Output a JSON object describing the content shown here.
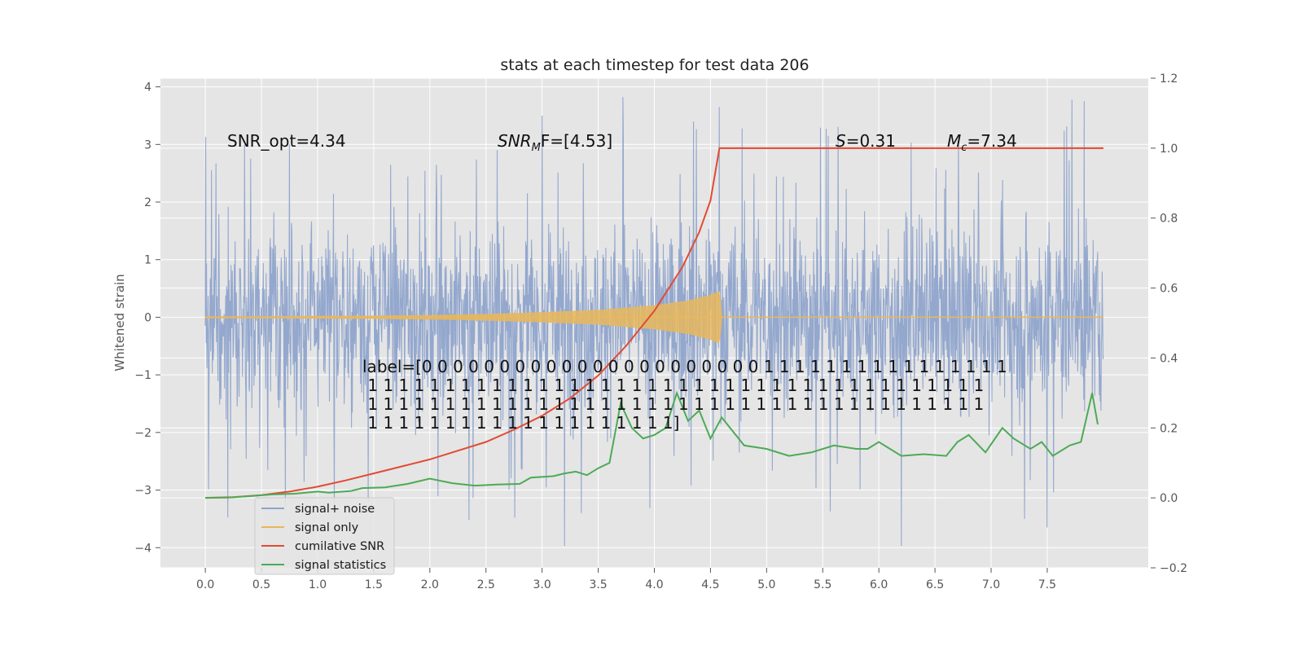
{
  "chart_data": {
    "type": "line",
    "title": "stats at each timestep for test data 206",
    "ylabel": "Whitened strain",
    "xlabel": "",
    "x_range": [
      0,
      8
    ],
    "xlim": [
      -0.4,
      8.4
    ],
    "ylim_left": [
      -4.35,
      4.15
    ],
    "ylim_right": [
      -0.2,
      1.2
    ],
    "x_ticks": [
      0.0,
      0.5,
      1.0,
      1.5,
      2.0,
      2.5,
      3.0,
      3.5,
      4.0,
      4.5,
      5.0,
      5.5,
      6.0,
      6.5,
      7.0,
      7.5
    ],
    "x_tick_labels": [
      "0.0",
      "0.5",
      "1.0",
      "1.5",
      "2.0",
      "2.5",
      "3.0",
      "3.5",
      "4.0",
      "4.5",
      "5.0",
      "5.5",
      "6.0",
      "6.5",
      "7.0",
      "7.5"
    ],
    "y_ticks_left": [
      -4,
      -3,
      -2,
      -1,
      0,
      1,
      2,
      3,
      4
    ],
    "y_tick_labels_left": [
      "−4",
      "−3",
      "−2",
      "−1",
      "0",
      "1",
      "2",
      "3",
      "4"
    ],
    "y_ticks_right": [
      -0.2,
      0.0,
      0.2,
      0.4,
      0.6,
      0.8,
      1.0,
      1.2
    ],
    "y_tick_labels_right": [
      "−0.2",
      "0.0",
      "0.2",
      "0.4",
      "0.6",
      "0.8",
      "1.0",
      "1.2"
    ],
    "grid": true,
    "legend_position": "lower-left",
    "series": [
      {
        "name": "signal+ noise",
        "color": "#8fa4cc",
        "axis": "left",
        "x_range": [
          0,
          8
        ],
        "typical_std": 0.9,
        "y_min": -3.97,
        "y_max": 3.82,
        "notable_points": [
          [
            0.35,
            3.0
          ],
          [
            0.75,
            3.0
          ],
          [
            1.15,
            -3.3
          ],
          [
            1.45,
            -3.2
          ],
          [
            2.35,
            -3.52
          ],
          [
            2.6,
            2.9
          ],
          [
            3.0,
            3.5
          ],
          [
            3.2,
            -3.97
          ],
          [
            3.35,
            -3.4
          ],
          [
            3.72,
            3.82
          ],
          [
            4.35,
            3.4
          ],
          [
            4.58,
            3.65
          ],
          [
            5.55,
            3.15
          ],
          [
            6.2,
            -3.97
          ],
          [
            7.3,
            -3.5
          ],
          [
            7.5,
            -3.65
          ],
          [
            7.72,
            3.78
          ],
          [
            7.83,
            3.75
          ]
        ]
      },
      {
        "name": "signal only",
        "color": "#e8b75c",
        "axis": "left",
        "x": [
          0.0,
          0.5,
          1.0,
          1.5,
          2.0,
          2.5,
          3.0,
          3.5,
          4.0,
          4.3,
          4.5,
          4.58,
          4.6,
          5.0,
          6.0,
          7.0,
          8.0
        ],
        "amplitude": [
          0.01,
          0.01,
          0.015,
          0.02,
          0.03,
          0.05,
          0.08,
          0.12,
          0.2,
          0.28,
          0.38,
          0.45,
          0.0,
          0.0,
          0.0,
          0.0,
          0.0
        ]
      },
      {
        "name": "cumilative SNR",
        "color": "#e24a33",
        "axis": "right",
        "x": [
          0.0,
          0.25,
          0.5,
          0.75,
          1.0,
          1.25,
          1.5,
          1.75,
          2.0,
          2.25,
          2.5,
          2.75,
          3.0,
          3.25,
          3.5,
          3.75,
          4.0,
          4.25,
          4.4,
          4.5,
          4.58,
          5.0,
          6.0,
          7.0,
          8.0
        ],
        "y": [
          0.0,
          0.002,
          0.008,
          0.018,
          0.032,
          0.05,
          0.07,
          0.09,
          0.11,
          0.135,
          0.16,
          0.195,
          0.235,
          0.285,
          0.35,
          0.435,
          0.535,
          0.66,
          0.76,
          0.85,
          1.0,
          1.0,
          1.0,
          1.0,
          1.0
        ]
      },
      {
        "name": "signal statistics",
        "color": "#4daa57",
        "axis": "right",
        "x": [
          0.0,
          0.2,
          0.4,
          0.6,
          0.8,
          1.0,
          1.1,
          1.3,
          1.4,
          1.6,
          1.8,
          2.0,
          2.2,
          2.4,
          2.6,
          2.8,
          2.9,
          3.1,
          3.2,
          3.3,
          3.4,
          3.5,
          3.6,
          3.7,
          3.8,
          3.9,
          4.0,
          4.1,
          4.2,
          4.3,
          4.4,
          4.5,
          4.6,
          4.8,
          5.0,
          5.2,
          5.4,
          5.6,
          5.8,
          5.9,
          6.0,
          6.2,
          6.4,
          6.6,
          6.7,
          6.8,
          6.95,
          7.1,
          7.2,
          7.35,
          7.45,
          7.55,
          7.7,
          7.8,
          7.9,
          7.95
        ],
        "y": [
          0.0,
          0.001,
          0.005,
          0.01,
          0.012,
          0.018,
          0.015,
          0.02,
          0.028,
          0.03,
          0.04,
          0.055,
          0.042,
          0.035,
          0.038,
          0.04,
          0.058,
          0.062,
          0.07,
          0.075,
          0.065,
          0.085,
          0.1,
          0.27,
          0.2,
          0.17,
          0.18,
          0.2,
          0.3,
          0.22,
          0.25,
          0.17,
          0.23,
          0.15,
          0.14,
          0.12,
          0.13,
          0.15,
          0.14,
          0.14,
          0.16,
          0.12,
          0.125,
          0.12,
          0.16,
          0.18,
          0.13,
          0.2,
          0.17,
          0.14,
          0.16,
          0.12,
          0.15,
          0.16,
          0.3,
          0.21
        ]
      }
    ],
    "annotations": {
      "snr_opt": "SNR_opt=4.34",
      "snr_mf_main": "SNR",
      "snr_mf_sub": "M",
      "snr_mf_rest": "F=[4.53]",
      "s_var": "S",
      "s_val": "=0.31",
      "mc_var": "M",
      "mc_sub": "c",
      "mc_val": "=7.34",
      "label_lines": [
        "label=[0 0 0 0 0 0 0 0 0 0 0 0 0 0 0 0 0 0 0 0 0 0 1 1 1 1 1 1 1 1 1 1 1 1 1 1 1 1",
        " 1 1 1 1 1 1 1 1 1 1 1 1 1 1 1 1 1 1 1 1 1 1 1 1 1 1 1 1 1 1 1 1 1 1 1 1 1 1 1 1",
        " 1 1 1 1 1 1 1 1 1 1 1 1 1 1 1 1 1 1 1 1 1 1 1 1 1 1 1 1 1 1 1 1 1 1 1 1 1 1 1 1",
        " 1 1 1 1 1 1 1 1 1 1 1 1 1 1 1 1 1 1 1 1]"
      ]
    },
    "legend": {
      "entries": [
        "signal+ noise",
        "signal only",
        "cumilative SNR",
        "signal statistics"
      ],
      "ghost_entries": [
        "signal+ noise",
        "signal only",
        "cumilative SNR",
        "signal statistics"
      ]
    }
  }
}
